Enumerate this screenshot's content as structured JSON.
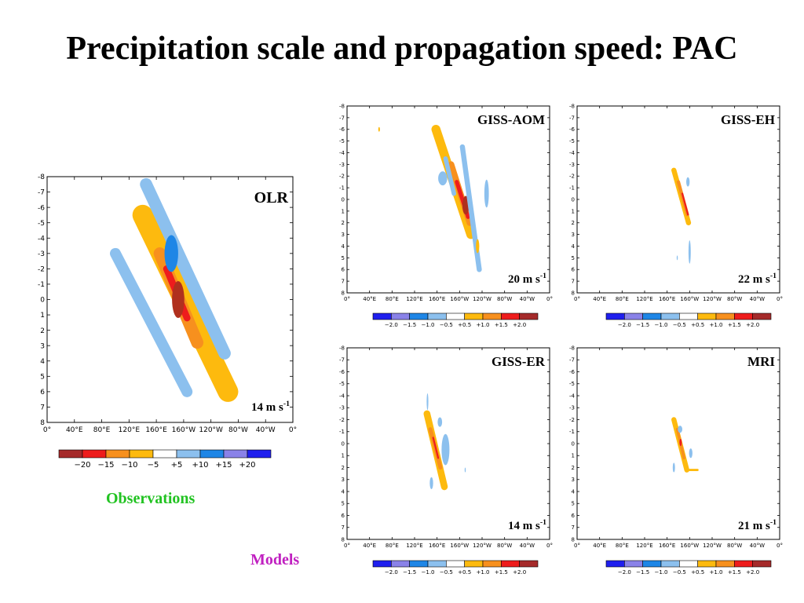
{
  "title": "Precipitation scale and propagation speed: PAC",
  "notes": {
    "observations": "Observations",
    "models": "Models"
  },
  "colors": {
    "observations_label": "#22c322",
    "models_label": "#c020c0",
    "palette_neg": [
      "#1f1fee",
      "#8a82e8",
      "#1e86e6",
      "#8cc0ee",
      "#ffffff"
    ],
    "palette_pos": [
      "#ffffff",
      "#fdba0e",
      "#f7901e",
      "#ee1c1c",
      "#a52a2a"
    ]
  },
  "chart_data": [
    {
      "type": "heatmap",
      "panel": "OLR",
      "label": "OLR",
      "speed_label": "14 m s",
      "speed_exponent": "-1",
      "x_ticks": [
        "0°",
        "40°E",
        "80°E",
        "120°E",
        "160°E",
        "160°W",
        "120°W",
        "80°W",
        "40°W",
        "0°"
      ],
      "y_ticks": [
        "-8",
        "-7",
        "-6",
        "-5",
        "-4",
        "-3",
        "-2",
        "-1",
        "0",
        "1",
        "2",
        "3",
        "4",
        "5",
        "6",
        "7",
        "8"
      ],
      "colorbar": {
        "ticks": [
          "−20",
          "−15",
          "−10",
          "−5",
          "+5",
          "+10",
          "+15",
          "+20"
        ],
        "colors": [
          "#a52a2a",
          "#ee1c1c",
          "#f7901e",
          "#fdba0e",
          "#ffffff",
          "#8cc0ee",
          "#1e86e6",
          "#8a82e8",
          "#1f1fee"
        ]
      },
      "features": [
        {
          "kind": "band",
          "from": [
            140,
            -5.5
          ],
          "to": [
            265,
            6
          ],
          "width": 30,
          "level": "pos1"
        },
        {
          "kind": "band",
          "from": [
            165,
            -3
          ],
          "to": [
            220,
            2.8
          ],
          "width": 18,
          "level": "pos2"
        },
        {
          "kind": "band",
          "from": [
            175,
            -2
          ],
          "to": [
            205,
            1.2
          ],
          "width": 10,
          "level": "pos3"
        },
        {
          "kind": "blob",
          "center": [
            192,
            0
          ],
          "rx": 9,
          "ry": 1.2,
          "level": "pos4"
        },
        {
          "kind": "band",
          "from": [
            145,
            -7.5
          ],
          "to": [
            260,
            3.5
          ],
          "width": 18,
          "level": "neg1",
          "side": "upper"
        },
        {
          "kind": "band",
          "from": [
            100,
            -3
          ],
          "to": [
            205,
            6
          ],
          "width": 16,
          "level": "neg1",
          "side": "lower"
        },
        {
          "kind": "blob",
          "center": [
            182,
            -3
          ],
          "rx": 10,
          "ry": 1.2,
          "level": "neg2"
        }
      ]
    },
    {
      "type": "heatmap",
      "panel": "GISS-AOM",
      "label": "GISS-AOM",
      "speed_label": "20 m s",
      "speed_exponent": "-1",
      "x_ticks": [
        "0°",
        "40°E",
        "80°E",
        "120°E",
        "160°E",
        "160°W",
        "120°W",
        "80°W",
        "40°W",
        "0°"
      ],
      "y_ticks": [
        "-8",
        "-7",
        "-6",
        "-5",
        "-4",
        "-3",
        "-2",
        "-1",
        "0",
        "1",
        "2",
        "3",
        "4",
        "5",
        "6",
        "7",
        "8"
      ],
      "colorbar": {
        "ticks": [
          "−2.0",
          "−1.5",
          "−1.0",
          "−0.5",
          "+0.5",
          "+1.0",
          "+1.5",
          "+2.0"
        ],
        "colors": [
          "#1f1fee",
          "#8a82e8",
          "#1e86e6",
          "#8cc0ee",
          "#ffffff",
          "#fdba0e",
          "#f7901e",
          "#ee1c1c",
          "#a52a2a"
        ]
      }
    },
    {
      "type": "heatmap",
      "panel": "GISS-EH",
      "label": "GISS-EH",
      "speed_label": "22 m s",
      "speed_exponent": "-1",
      "x_ticks": [
        "0°",
        "40°E",
        "80°E",
        "120°E",
        "160°E",
        "160°W",
        "120°W",
        "80°W",
        "40°W",
        "0°"
      ],
      "y_ticks": [
        "-8",
        "-7",
        "-6",
        "-5",
        "-4",
        "-3",
        "-2",
        "-1",
        "0",
        "1",
        "2",
        "3",
        "4",
        "5",
        "6",
        "7",
        "8"
      ],
      "colorbar": {
        "ticks": [
          "−2.0",
          "−1.5",
          "−1.0",
          "−0.5",
          "+0.5",
          "+1.0",
          "+1.5",
          "+2.0"
        ],
        "colors": [
          "#1f1fee",
          "#8a82e8",
          "#1e86e6",
          "#8cc0ee",
          "#ffffff",
          "#fdba0e",
          "#f7901e",
          "#ee1c1c",
          "#a52a2a"
        ]
      }
    },
    {
      "type": "heatmap",
      "panel": "GISS-ER",
      "label": "GISS-ER",
      "speed_label": "14 m s",
      "speed_exponent": "-1",
      "x_ticks": [
        "0°",
        "40°E",
        "80°E",
        "120°E",
        "160°E",
        "160°W",
        "120°W",
        "80°W",
        "40°W",
        "0°"
      ],
      "y_ticks": [
        "-8",
        "-7",
        "-6",
        "-5",
        "-4",
        "-3",
        "-2",
        "-1",
        "0",
        "1",
        "2",
        "3",
        "4",
        "5",
        "6",
        "7",
        "8"
      ],
      "colorbar": {
        "ticks": [
          "−2.0",
          "−1.5",
          "−1.0",
          "−0.5",
          "+0.5",
          "+1.0",
          "+1.5",
          "+2.0"
        ],
        "colors": [
          "#1f1fee",
          "#8a82e8",
          "#1e86e6",
          "#8cc0ee",
          "#ffffff",
          "#fdba0e",
          "#f7901e",
          "#ee1c1c",
          "#a52a2a"
        ]
      }
    },
    {
      "type": "heatmap",
      "panel": "MRI",
      "label": "MRI",
      "speed_label": "21 m s",
      "speed_exponent": "-1",
      "x_ticks": [
        "0°",
        "40°E",
        "80°E",
        "120°E",
        "160°E",
        "160°W",
        "120°W",
        "80°W",
        "40°W",
        "0°"
      ],
      "y_ticks": [
        "-8",
        "-7",
        "-6",
        "-5",
        "-4",
        "-3",
        "-2",
        "-1",
        "0",
        "1",
        "2",
        "3",
        "4",
        "5",
        "6",
        "7",
        "8"
      ],
      "colorbar": {
        "ticks": [
          "−2.0",
          "−1.5",
          "−1.0",
          "−0.5",
          "+0.5",
          "+1.0",
          "+1.5",
          "+2.0"
        ],
        "colors": [
          "#1f1fee",
          "#8a82e8",
          "#1e86e6",
          "#8cc0ee",
          "#ffffff",
          "#fdba0e",
          "#f7901e",
          "#ee1c1c",
          "#a52a2a"
        ]
      }
    }
  ]
}
